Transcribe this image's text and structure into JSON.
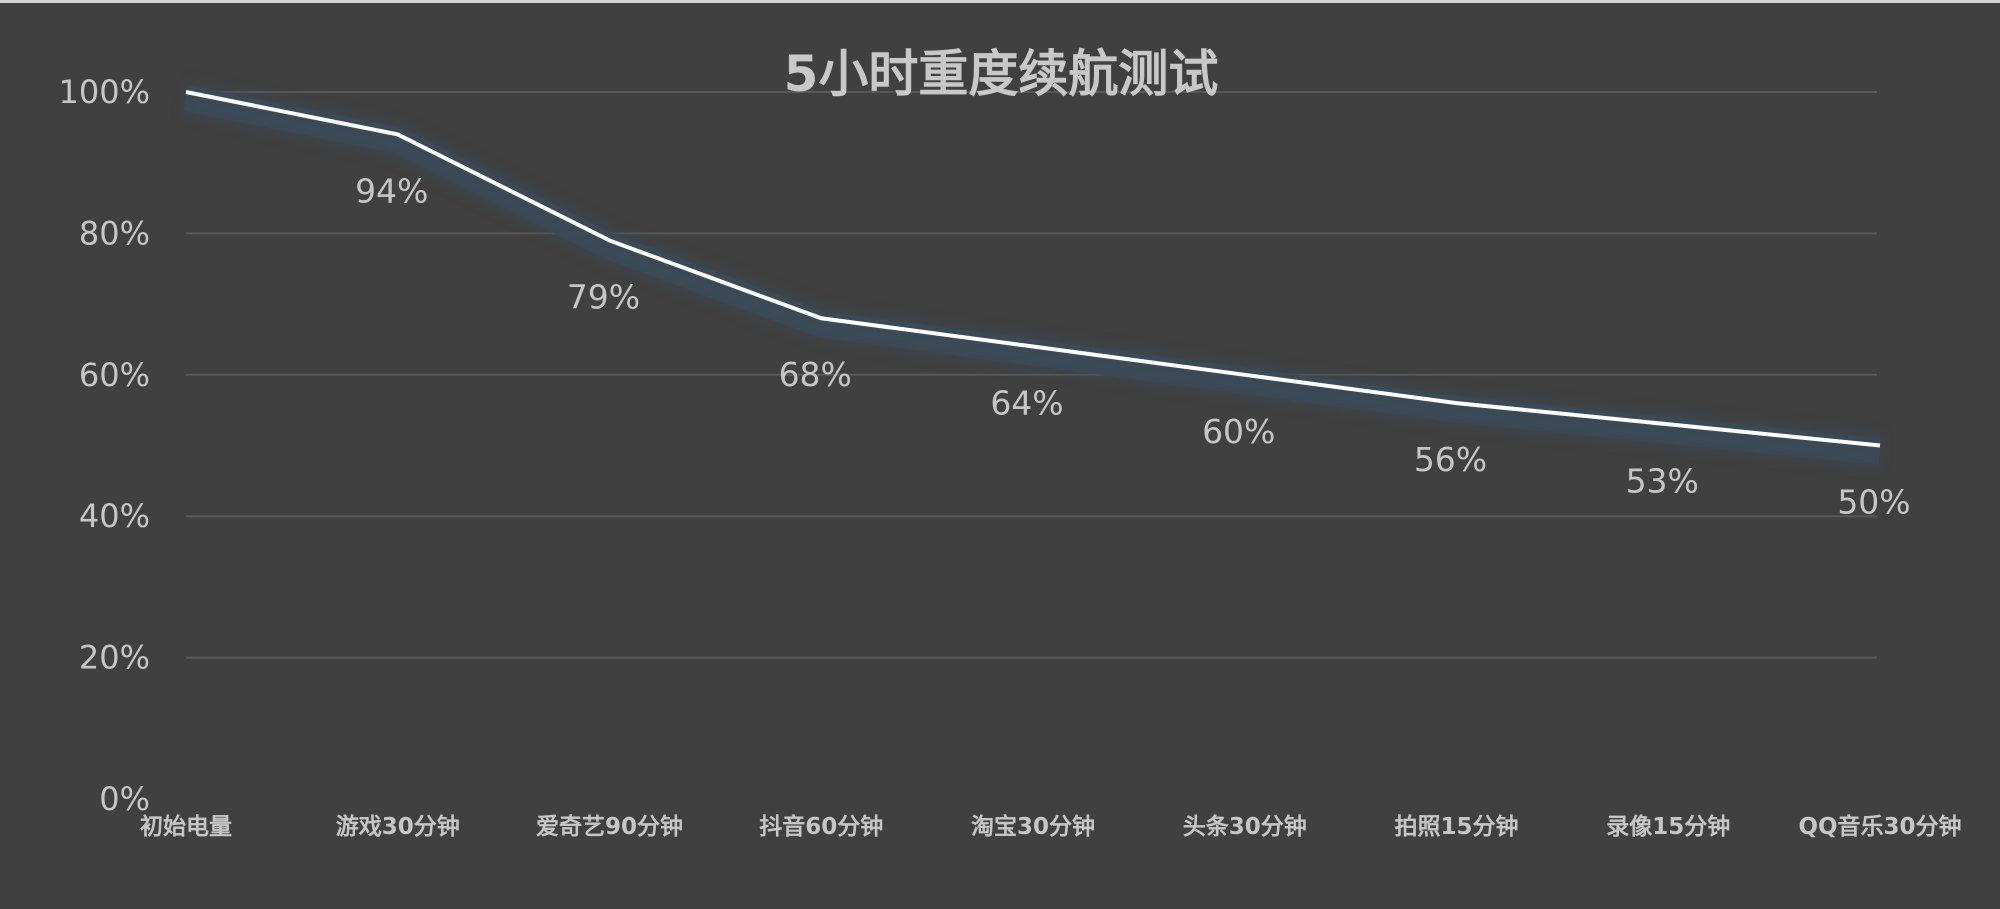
{
  "chart_data": {
    "type": "line",
    "title": "5小时重度续航测试",
    "xlabel": "",
    "ylabel": "",
    "categories": [
      "初始电量",
      "游戏30分钟",
      "爱奇艺90分钟",
      "抖音60分钟",
      "淘宝30分钟",
      "头条30分钟",
      "拍照15分钟",
      "录像15分钟",
      "QQ音乐30分钟"
    ],
    "series": [
      {
        "name": "电量",
        "values": [
          100,
          94,
          79,
          68,
          64,
          60,
          56,
          53,
          50
        ],
        "data_labels": [
          "",
          "94%",
          "79%",
          "68%",
          "64%",
          "60%",
          "56%",
          "53%",
          "50%"
        ]
      }
    ],
    "ylim": [
      0,
      100
    ],
    "yticks": [
      0,
      20,
      40,
      60,
      80,
      100
    ],
    "ytick_labels": [
      "0%",
      "20%",
      "40%",
      "60%",
      "80%",
      "100%"
    ],
    "grid": true,
    "legend": "none"
  },
  "style": {
    "background": "#404040",
    "line_color": "#ffffff",
    "glow_color": "#3b4a58",
    "text_color": "#c6c6c6",
    "grid_color": "#585858"
  }
}
